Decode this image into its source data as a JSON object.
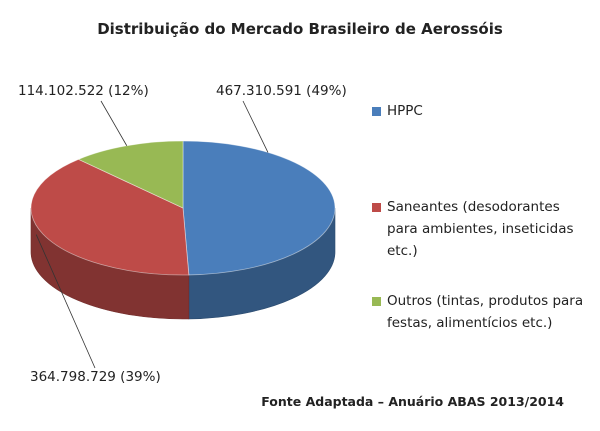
{
  "chart_data": {
    "type": "pie",
    "title": "Distribuição do Mercado Brasileiro de Aerossóis",
    "slices": [
      {
        "name": "HPPC",
        "value": 467310591,
        "percent": 49,
        "label": "467.310.591 (49%)",
        "color": "#4a7ebb"
      },
      {
        "name": "Saneantes (desodorantes para ambientes, inseticidas etc.)",
        "value": 364798729,
        "percent": 39,
        "label": "364.798.729 (39%)",
        "color": "#be4b48"
      },
      {
        "name": "Outros (tintas, produtos para festas, alimentícios etc.)",
        "value": 114102522,
        "percent": 12,
        "label": "114.102.522 (12%)",
        "color": "#98b954"
      }
    ],
    "legend_position": "right",
    "style": "3d"
  },
  "source_note": "Fonte Adaptada – Anuário ABAS 2013/2014"
}
